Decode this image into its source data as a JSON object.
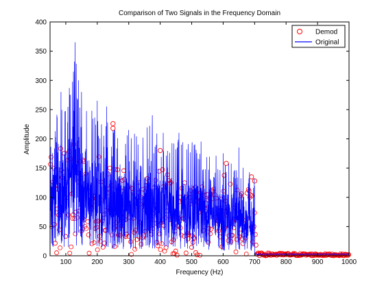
{
  "chart_data": {
    "type": "line",
    "title": "Comparison of Two Signals in the Frequency Domain",
    "xlabel": "Frequency (Hz)",
    "ylabel": "Amplitude",
    "xlim": [
      50,
      1000
    ],
    "ylim": [
      0,
      400
    ],
    "xticks": [
      100,
      200,
      300,
      400,
      500,
      600,
      700,
      800,
      900,
      1000
    ],
    "yticks": [
      0,
      50,
      100,
      150,
      200,
      250,
      300,
      350,
      400
    ],
    "grid": false,
    "legend_position": "top-right",
    "band_edge_hz": 700,
    "series": [
      {
        "name": "Demod",
        "style": "markers",
        "marker": "circle",
        "color": "#ff0000",
        "notable_points": [
          [
            250,
            226
          ],
          [
            250,
            218
          ],
          [
            400,
            180
          ],
          [
            610,
            158
          ],
          [
            690,
            135
          ],
          [
            700,
            128
          ]
        ],
        "envelope": [
          [
            60,
            200
          ],
          [
            130,
            215
          ],
          [
            200,
            185
          ],
          [
            250,
            226
          ],
          [
            300,
            150
          ],
          [
            350,
            140
          ],
          [
            400,
            180
          ],
          [
            450,
            150
          ],
          [
            500,
            135
          ],
          [
            550,
            135
          ],
          [
            600,
            158
          ],
          [
            650,
            125
          ],
          [
            700,
            128
          ],
          [
            705,
            5
          ],
          [
            1000,
            3
          ]
        ]
      },
      {
        "name": "Original",
        "style": "line",
        "color": "#0000ff",
        "notable_points": [
          [
            130,
            365
          ],
          [
            85,
            280
          ],
          [
            115,
            275
          ],
          [
            150,
            280
          ],
          [
            200,
            265
          ],
          [
            230,
            255
          ],
          [
            300,
            215
          ],
          [
            375,
            240
          ],
          [
            410,
            210
          ],
          [
            460,
            210
          ],
          [
            530,
            195
          ],
          [
            600,
            175
          ],
          [
            650,
            185
          ]
        ],
        "envelope": [
          [
            60,
            250
          ],
          [
            100,
            280
          ],
          [
            130,
            365
          ],
          [
            150,
            280
          ],
          [
            200,
            265
          ],
          [
            250,
            240
          ],
          [
            300,
            215
          ],
          [
            375,
            240
          ],
          [
            400,
            215
          ],
          [
            450,
            210
          ],
          [
            500,
            205
          ],
          [
            550,
            190
          ],
          [
            600,
            175
          ],
          [
            650,
            185
          ],
          [
            700,
            140
          ],
          [
            705,
            2
          ],
          [
            1000,
            2
          ]
        ]
      }
    ]
  }
}
